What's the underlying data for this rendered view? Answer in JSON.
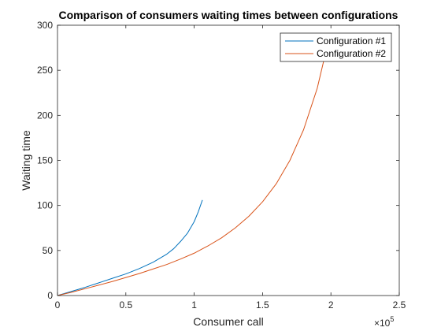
{
  "chart_data": {
    "type": "line",
    "title": "Comparison of consumers waiting times between configurations",
    "xlabel": "Consumer call",
    "ylabel": "Waiting time",
    "x_multiplier_label": "×10",
    "x_multiplier_exponent": "5",
    "xlim": [
      0,
      2.5
    ],
    "ylim": [
      0,
      300
    ],
    "x_ticks": [
      0,
      0.5,
      1,
      1.5,
      2,
      2.5
    ],
    "x_tick_labels": [
      "0",
      "0.5",
      "1",
      "1.5",
      "2",
      "2.5"
    ],
    "y_ticks": [
      0,
      50,
      100,
      150,
      200,
      250,
      300
    ],
    "y_tick_labels": [
      "0",
      "50",
      "100",
      "150",
      "200",
      "250",
      "300"
    ],
    "grid": false,
    "legend_position": "top-right",
    "series": [
      {
        "name": "Configuration #1",
        "color": "#0072BD",
        "x": [
          0,
          0.1,
          0.2,
          0.3,
          0.4,
          0.5,
          0.6,
          0.7,
          0.8,
          0.85,
          0.9,
          0.95,
          1.0,
          1.03,
          1.06
        ],
        "y": [
          0,
          4.5,
          9,
          14,
          19,
          24,
          30,
          37,
          46,
          52,
          60,
          69,
          82,
          93,
          106
        ]
      },
      {
        "name": "Configuration #2",
        "color": "#D95319",
        "x": [
          0,
          0.1,
          0.2,
          0.3,
          0.4,
          0.5,
          0.6,
          0.7,
          0.8,
          0.9,
          1.0,
          1.1,
          1.2,
          1.3,
          1.4,
          1.5,
          1.6,
          1.7,
          1.8,
          1.9,
          1.97
        ],
        "y": [
          0,
          3.5,
          7.5,
          11.5,
          15.5,
          20,
          24.5,
          29.5,
          34.5,
          40.5,
          47,
          55,
          64,
          75,
          88,
          104,
          124,
          150,
          184,
          230,
          275
        ]
      }
    ]
  }
}
